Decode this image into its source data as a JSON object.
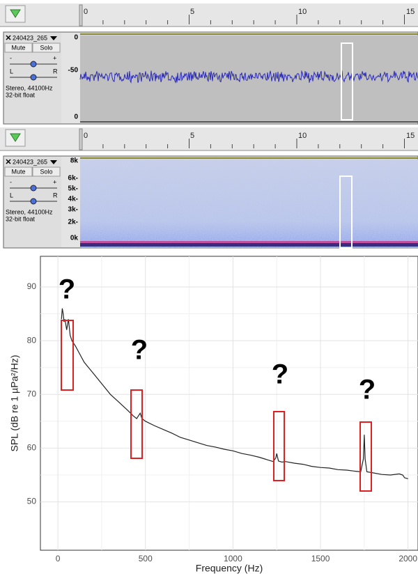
{
  "ruler": [
    0,
    5,
    10,
    15
  ],
  "tracks": [
    {
      "name": "240423_265",
      "mute": "Mute",
      "solo": "Solo",
      "gain_minus": "-",
      "gain_plus": "+",
      "pan_left": "L",
      "pan_right": "R",
      "format": "Stereo, 44100Hz",
      "bit_depth": "32-bit float",
      "scale": [
        "0",
        "-50",
        "0"
      ]
    },
    {
      "name": "240423_265",
      "mute": "Mute",
      "solo": "Solo",
      "gain_minus": "-",
      "gain_plus": "+",
      "pan_left": "L",
      "pan_right": "R",
      "format": "Stereo, 44100Hz",
      "bit_depth": "32-bit float",
      "scale": [
        "8k",
        "6k-",
        "5k-",
        "4k-",
        "3k-",
        "2k-",
        "0k"
      ]
    }
  ],
  "chart_data": {
    "type": "line",
    "x_label": "Frequency (Hz)",
    "y_label": "SPL (dB re 1 µPa²/Hz)",
    "annotations": [
      "?",
      "?",
      "?",
      "?"
    ],
    "x": [
      20,
      25,
      30,
      35,
      40,
      50,
      60,
      70,
      80,
      100,
      125,
      150,
      175,
      200,
      250,
      300,
      350,
      400,
      430,
      450,
      460,
      470,
      480,
      500,
      550,
      600,
      650,
      700,
      750,
      800,
      850,
      900,
      950,
      1000,
      1050,
      1100,
      1150,
      1200,
      1230,
      1245,
      1250,
      1260,
      1280,
      1300,
      1350,
      1400,
      1450,
      1500,
      1550,
      1600,
      1650,
      1700,
      1730,
      1745,
      1750,
      1755,
      1765,
      1800,
      1850,
      1900,
      1950,
      1970,
      1980,
      2000
    ],
    "series": [
      {
        "color": "#222222",
        "values": [
          84,
          86,
          85,
          83.5,
          84,
          82,
          84,
          81,
          80,
          79,
          77.5,
          76,
          75,
          74,
          72,
          70,
          68.5,
          67,
          66,
          65.5,
          66,
          66.5,
          65.5,
          65,
          64.2,
          63.5,
          62.8,
          62,
          61.5,
          61,
          60.5,
          60.2,
          59.8,
          59.5,
          59,
          58.7,
          58.3,
          57.8,
          57.5,
          58.2,
          59,
          57.6,
          57.4,
          57.5,
          57.2,
          57,
          56.6,
          56.4,
          56.3,
          56,
          55.9,
          55.7,
          55.6,
          58,
          62.5,
          58,
          55.6,
          55.4,
          55.1,
          55,
          55.2,
          55,
          54.5,
          54.3
        ]
      }
    ],
    "xlim": [
      -100,
      2057
    ],
    "ylim": [
      41,
      95.7
    ],
    "xticks": [
      0,
      500,
      1000,
      1500,
      2000
    ],
    "yticks": [
      50,
      60,
      70,
      80,
      90
    ],
    "grid": true
  }
}
